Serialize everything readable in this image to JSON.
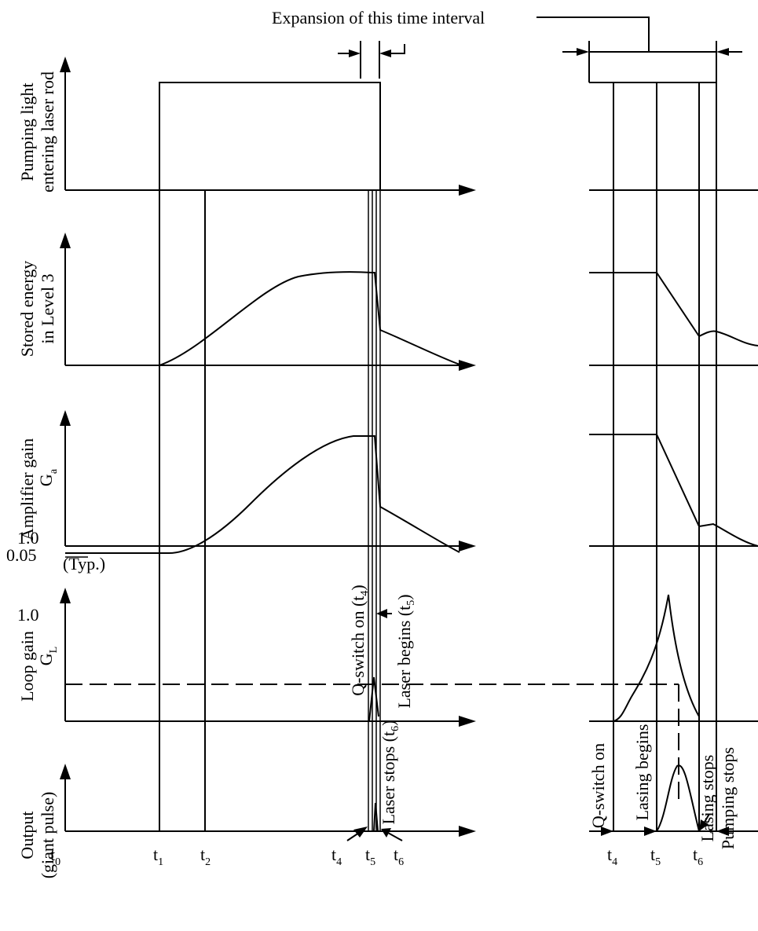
{
  "header": {
    "expansion_label": "Expansion of this time interval"
  },
  "panels": {
    "pumping": {
      "line1": "Pumping light",
      "line2": "entering laser rod"
    },
    "stored": {
      "line1": "Stored energy",
      "line2": "in Level 3"
    },
    "amp": {
      "line1": "Amplifier gain",
      "symbol": "G",
      "symbol_sub": "a",
      "tick_upper": "1.0",
      "tick_lower": "0.05",
      "tick_note": "(Typ.)"
    },
    "loop": {
      "line1": "Loop gain",
      "symbol": "G",
      "symbol_sub": "L",
      "tick": "1.0"
    },
    "output": {
      "line1": "Output",
      "line2": "(giant pulse)"
    }
  },
  "annotations": {
    "qswitch": {
      "text": "Q-switch on (t",
      "sub": "4",
      "close": ")"
    },
    "laser_begins": {
      "text": "Laser begins (t",
      "sub": "5",
      "close": ")"
    },
    "laser_stops": {
      "text": "Laser stops (t",
      "sub": "6",
      "close": ")"
    },
    "exp_qswitch": "Q-switch on",
    "exp_lasing_begins": "Lasing begins",
    "exp_lasing_stops": "Lasing stops",
    "exp_pumping_stops": "Pumping stops"
  },
  "time_ticks": {
    "main": [
      {
        "base": "t",
        "sub": "0"
      },
      {
        "base": "t",
        "sub": "1"
      },
      {
        "base": "t",
        "sub": "2"
      },
      {
        "base": "t",
        "sub": "4"
      },
      {
        "base": "t",
        "sub": "5"
      },
      {
        "base": "t",
        "sub": "6"
      }
    ],
    "expanded": [
      {
        "base": "t",
        "sub": "4"
      },
      {
        "base": "t",
        "sub": "5"
      },
      {
        "base": "t",
        "sub": "6"
      }
    ]
  }
}
